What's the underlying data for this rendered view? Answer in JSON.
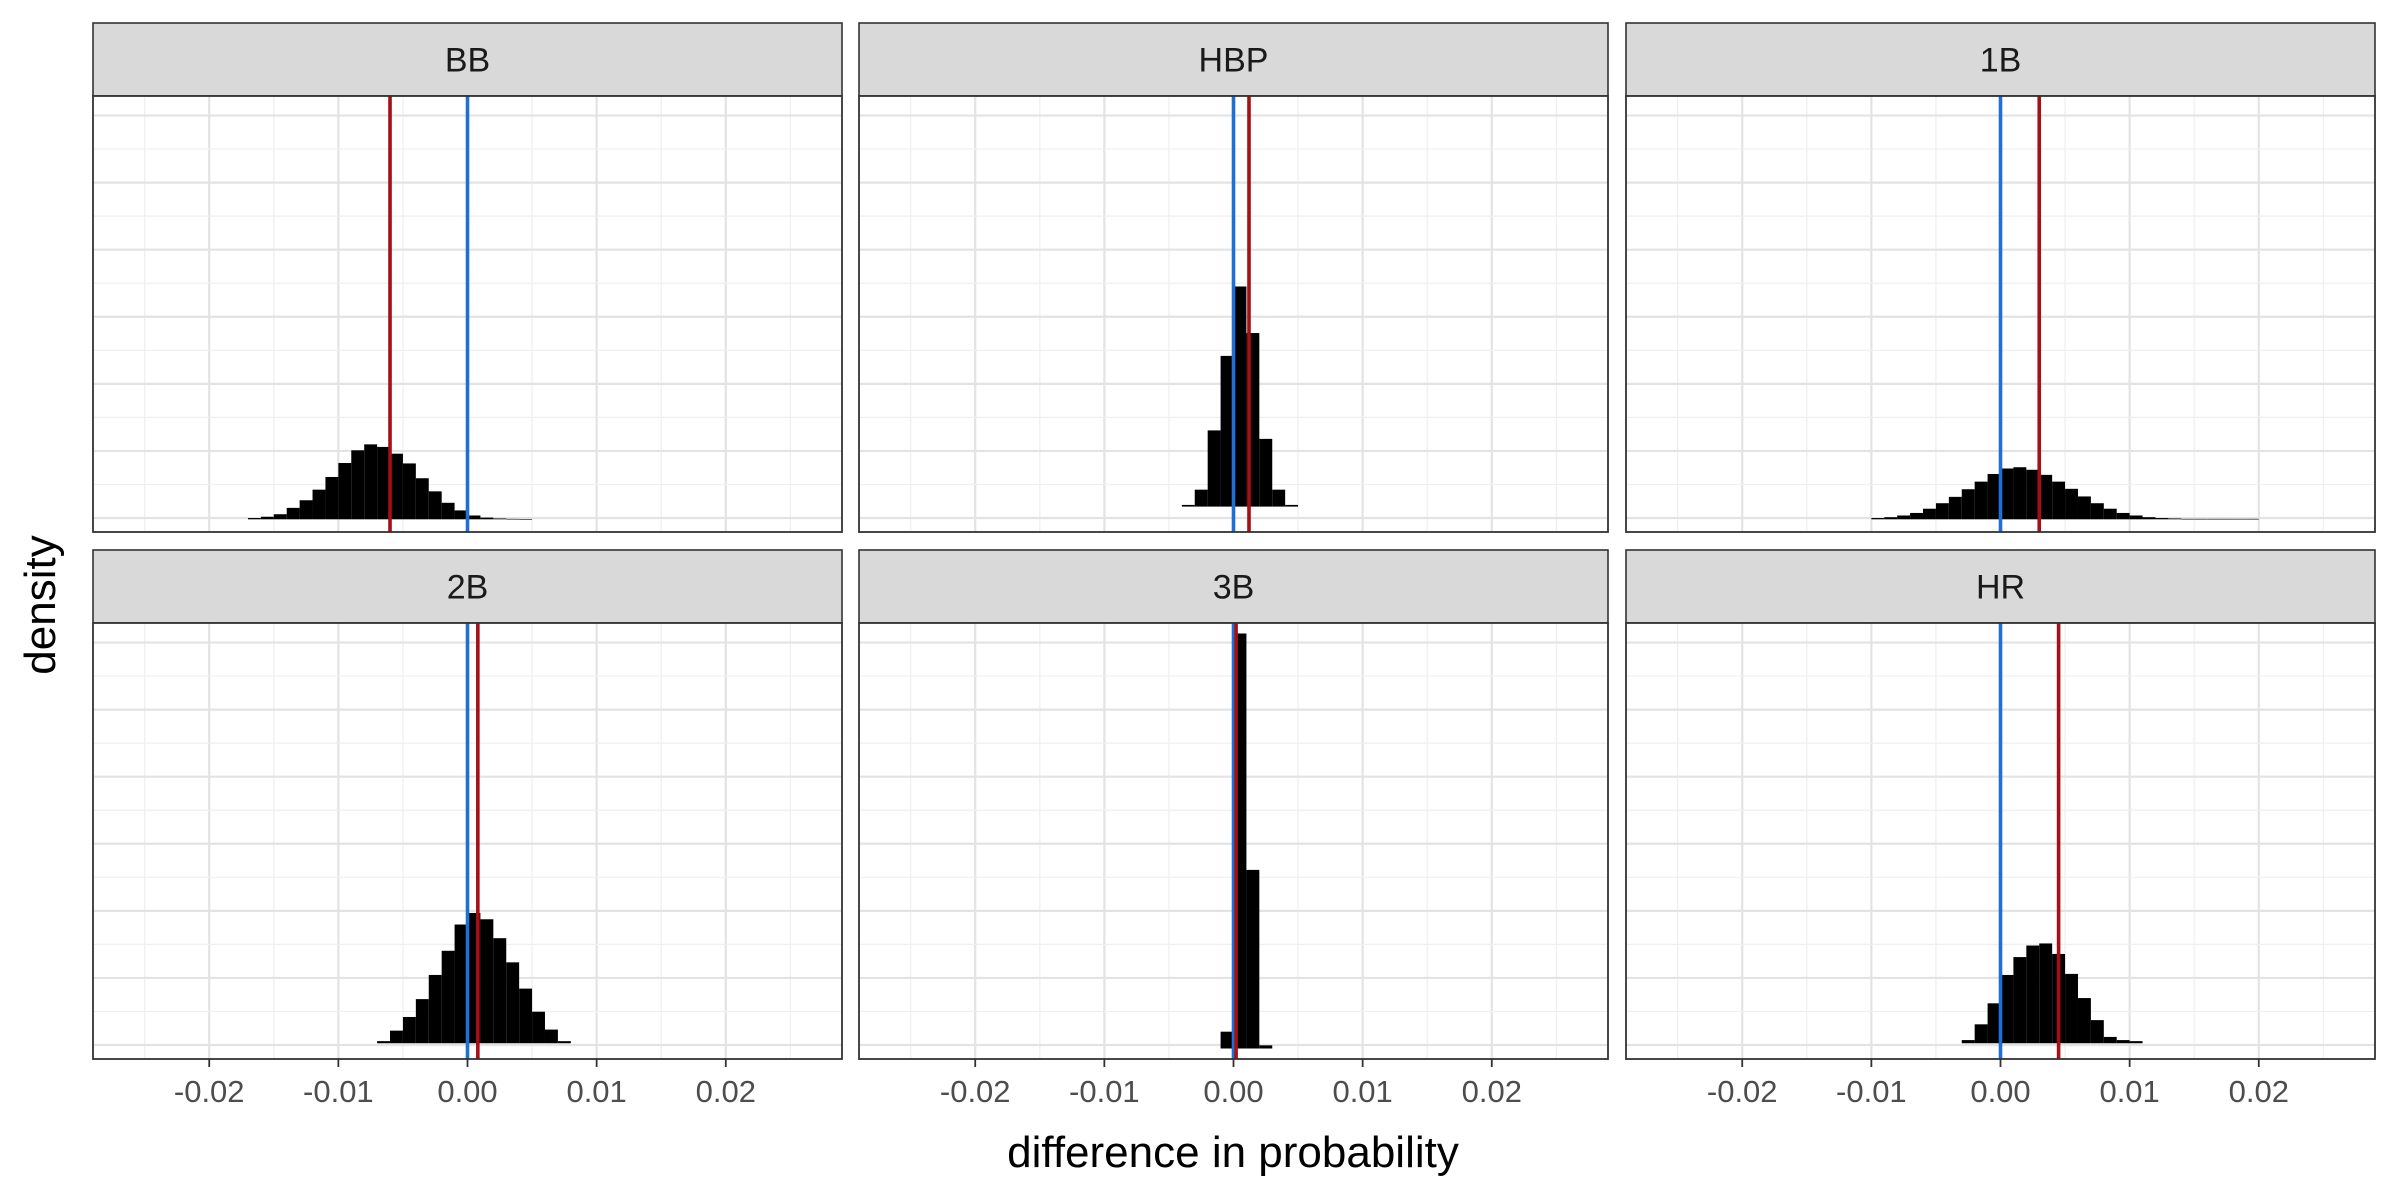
{
  "chart_data": {
    "type": "histogram",
    "layout": "facet-grid 2x3",
    "xlabel": "difference in probability",
    "ylabel": "density",
    "xlim": [
      -0.029,
      0.029
    ],
    "x_ticks": [
      -0.02,
      -0.01,
      0.0,
      0.01,
      0.02
    ],
    "x_tick_labels": [
      "-0.02",
      "-0.01",
      "0.00",
      "0.01",
      "0.02"
    ],
    "reference_line": {
      "x": 0.0,
      "color": "#1f6fd6"
    },
    "estimate_line_color": "#a50f15",
    "bar_color": "#000000",
    "bin_width": 0.001,
    "grid": true,
    "y_ticks_shown": false,
    "panels": [
      {
        "label": "BB",
        "row": 0,
        "col": 0,
        "estimate": -0.006,
        "ylim": [
          -0.03,
          1.0
        ],
        "bins_start": -0.017,
        "densities": [
          0.003,
          0.006,
          0.012,
          0.027,
          0.045,
          0.07,
          0.1,
          0.133,
          0.163,
          0.177,
          0.171,
          0.155,
          0.132,
          0.097,
          0.066,
          0.039,
          0.021,
          0.009,
          0.004,
          0.002,
          0.001,
          0.0005
        ]
      },
      {
        "label": "HBP",
        "row": 0,
        "col": 1,
        "estimate": 0.0012,
        "ylim": [
          -0.03,
          0.485
        ],
        "bins_start": -0.004,
        "densities": [
          0.002,
          0.02,
          0.09,
          0.178,
          0.26,
          0.205,
          0.08,
          0.02,
          0.002
        ]
      },
      {
        "label": "1B",
        "row": 0,
        "col": 2,
        "estimate": 0.003,
        "ylim": [
          -0.03,
          1.0
        ],
        "bins_start": -0.01,
        "densities": [
          0.003,
          0.005,
          0.009,
          0.015,
          0.025,
          0.038,
          0.053,
          0.071,
          0.089,
          0.107,
          0.12,
          0.123,
          0.117,
          0.105,
          0.089,
          0.072,
          0.054,
          0.038,
          0.025,
          0.015,
          0.009,
          0.005,
          0.003,
          0.002,
          0.001,
          0.001,
          0.001,
          0.001,
          0.001,
          0.001
        ]
      },
      {
        "label": "2B",
        "row": 1,
        "col": 0,
        "estimate": 0.0008,
        "ylim": [
          -0.015,
          0.4
        ],
        "bins_start": -0.007,
        "densities": [
          0.002,
          0.012,
          0.025,
          0.042,
          0.065,
          0.088,
          0.113,
          0.124,
          0.118,
          0.1,
          0.077,
          0.052,
          0.03,
          0.013,
          0.002
        ]
      },
      {
        "label": "3B",
        "row": 1,
        "col": 1,
        "estimate": 0.0002,
        "ylim": [
          -0.01,
          0.405
        ],
        "bins_start": -0.001,
        "densities": [
          0.016,
          0.395,
          0.17,
          0.003
        ]
      },
      {
        "label": "HR",
        "row": 1,
        "col": 2,
        "estimate": 0.0045,
        "ylim": [
          -0.015,
          0.4
        ],
        "bins_start": -0.003,
        "densities": [
          0.003,
          0.018,
          0.038,
          0.065,
          0.082,
          0.093,
          0.095,
          0.085,
          0.066,
          0.043,
          0.022,
          0.006,
          0.003,
          0.002
        ]
      }
    ]
  }
}
